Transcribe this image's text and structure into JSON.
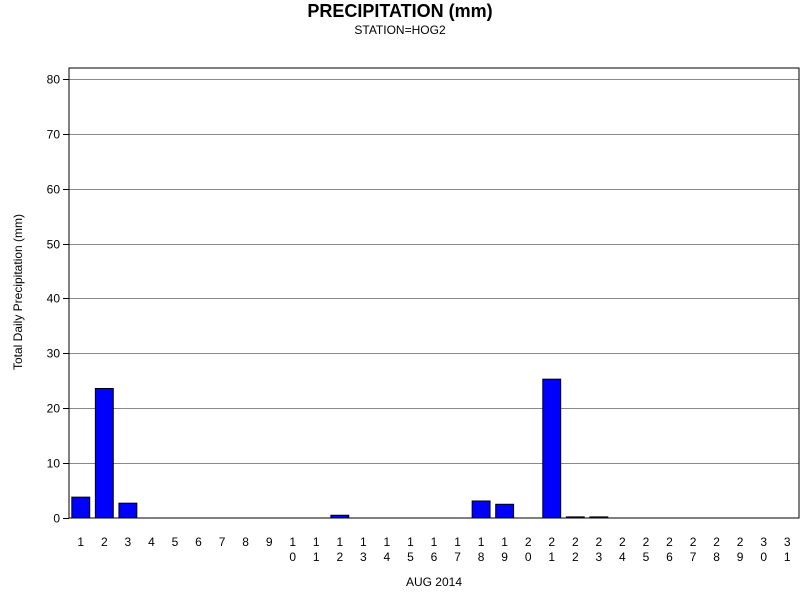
{
  "chart_data": {
    "type": "bar",
    "title": "PRECIPITATION (mm)",
    "subtitle": "STATION=HOG2",
    "xlabel": "AUG 2014",
    "ylabel": "Total Daily Precipitation (mm)",
    "ylim": [
      0,
      82
    ],
    "yticks": [
      0,
      10,
      20,
      30,
      40,
      50,
      60,
      70,
      80
    ],
    "grid": true,
    "categories": [
      "1",
      "2",
      "3",
      "4",
      "5",
      "6",
      "7",
      "8",
      "9",
      "10",
      "11",
      "12",
      "13",
      "14",
      "15",
      "16",
      "17",
      "18",
      "19",
      "20",
      "21",
      "22",
      "23",
      "24",
      "25",
      "26",
      "27",
      "28",
      "29",
      "30",
      "31"
    ],
    "values": [
      3.8,
      23.6,
      2.7,
      0,
      0,
      0,
      0,
      0,
      0,
      0,
      0,
      0.5,
      0,
      0,
      0,
      0,
      0,
      3.1,
      2.5,
      0,
      25.3,
      0.2,
      0.2,
      0,
      0,
      0,
      0,
      0,
      0,
      0,
      0
    ],
    "bar_color": "#0000ff"
  }
}
